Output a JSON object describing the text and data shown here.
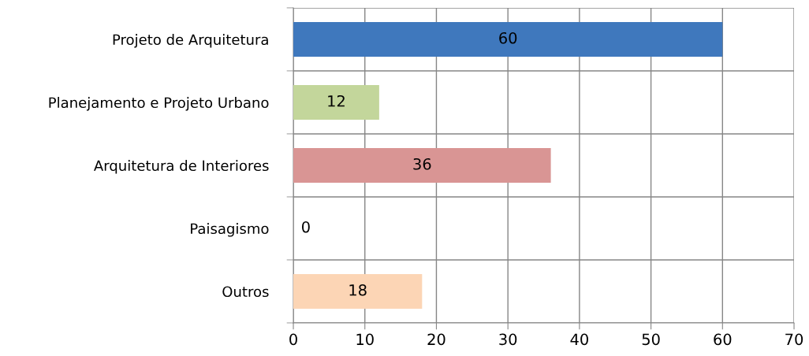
{
  "chart_data": {
    "type": "bar",
    "orientation": "horizontal",
    "categories": [
      "Projeto de Arquitetura",
      "Planejamento e Projeto Urbano",
      "Arquitetura de Interiores",
      "Paisagismo",
      "Outros"
    ],
    "values": [
      60,
      12,
      36,
      0,
      18
    ],
    "colors": [
      "#3f78bd",
      "#c3d69b",
      "#d99594",
      "#9bbb59",
      "#fcd5b5"
    ],
    "xlim": [
      0,
      70
    ],
    "xticks": [
      0,
      10,
      20,
      30,
      40,
      50,
      60,
      70
    ],
    "grid": true,
    "data_labels": true
  }
}
